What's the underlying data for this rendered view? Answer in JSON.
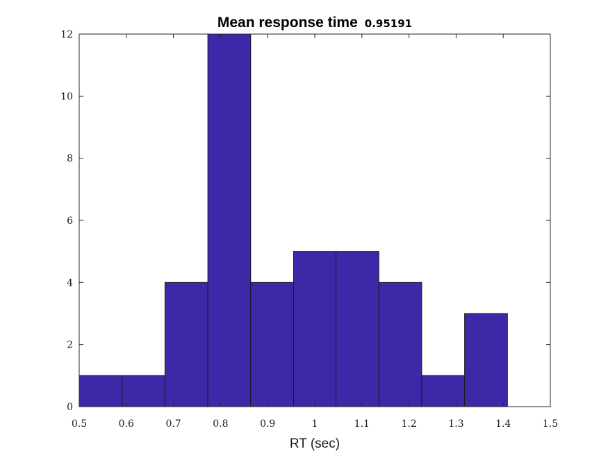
{
  "chart_data": {
    "type": "bar",
    "title": "Mean response time",
    "title_value": "0.95191",
    "xlabel": "RT (sec)",
    "ylabel": "",
    "xlim": [
      0.5,
      1.5
    ],
    "ylim": [
      0,
      12
    ],
    "xticks": [
      0.5,
      0.6,
      0.7,
      0.8,
      0.9,
      1,
      1.1,
      1.2,
      1.3,
      1.4,
      1.5
    ],
    "xtick_labels": [
      "0.5",
      "0.6",
      "0.7",
      "0.8",
      "0.9",
      "1",
      "1.1",
      "1.2",
      "1.3",
      "1.4",
      "1.5"
    ],
    "yticks": [
      0,
      2,
      4,
      6,
      8,
      10,
      12
    ],
    "ytick_labels": [
      "0",
      "2",
      "4",
      "6",
      "8",
      "10",
      "12"
    ],
    "bin_edges": [
      0.5,
      0.591,
      0.682,
      0.773,
      0.864,
      0.955,
      1.045,
      1.136,
      1.227,
      1.318,
      1.409
    ],
    "values": [
      1,
      1,
      4,
      12,
      4,
      5,
      5,
      4,
      1,
      3
    ],
    "bar_color": "#3d28a8",
    "grid": false,
    "box": true
  }
}
